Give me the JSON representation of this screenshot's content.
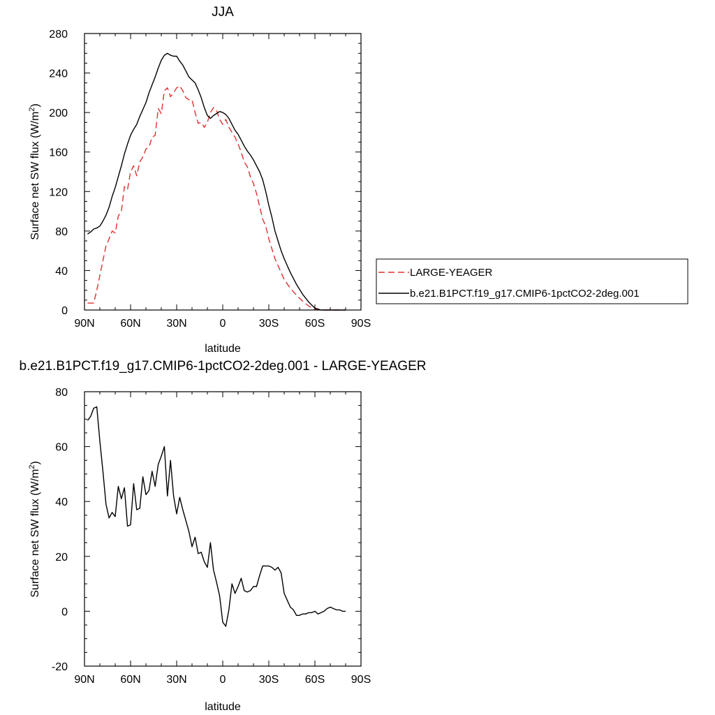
{
  "chart_data": [
    {
      "type": "line",
      "title": "JJA",
      "xlabel": "latitude",
      "ylabel": "Surface net SW flux (W/m²)",
      "xlim": [
        90,
        -90
      ],
      "ylim": [
        0,
        280
      ],
      "xticks": [
        90,
        60,
        30,
        0,
        -30,
        -60,
        -90
      ],
      "xtick_labels": [
        "90N",
        "60N",
        "30N",
        "0",
        "30S",
        "60S",
        "90S"
      ],
      "yticks": [
        0,
        40,
        80,
        120,
        160,
        200,
        240,
        280
      ],
      "ytick_labels": [
        "0",
        "40",
        "80",
        "120",
        "160",
        "200",
        "240",
        "280"
      ],
      "legend_position": "right",
      "series": [
        {
          "name": "LARGE-YEAGER",
          "color": "#e03030",
          "dash": "dashed",
          "x": [
            88,
            84,
            82,
            80,
            78,
            76,
            74,
            72,
            70,
            68,
            66,
            64,
            62,
            60,
            58,
            56,
            54,
            52,
            50,
            48,
            46,
            44,
            42,
            40,
            38,
            36,
            34,
            32,
            30,
            28,
            26,
            24,
            22,
            20,
            18,
            16,
            14,
            12,
            10,
            8,
            6,
            4,
            2,
            0,
            -2,
            -4,
            -6,
            -8,
            -10,
            -12,
            -14,
            -16,
            -18,
            -20,
            -22,
            -24,
            -26,
            -28,
            -30,
            -32,
            -34,
            -36,
            -38,
            -40,
            -44,
            -48,
            -52,
            -56,
            -60,
            -64,
            -66,
            -68,
            -70,
            -72,
            -76,
            -80
          ],
          "values": [
            7,
            7,
            20,
            35,
            50,
            65,
            72,
            80,
            78,
            95,
            100,
            125,
            122,
            140,
            146,
            136,
            150,
            155,
            163,
            165,
            175,
            177,
            204,
            199,
            222,
            225,
            216,
            220,
            225,
            227,
            222,
            215,
            213,
            213,
            200,
            189,
            190,
            185,
            190,
            200,
            205,
            202,
            193,
            188,
            193,
            185,
            180,
            175,
            168,
            160,
            150,
            145,
            135,
            128,
            118,
            105,
            92,
            85,
            72,
            62,
            52,
            45,
            38,
            31,
            22,
            15,
            9,
            4,
            1,
            0,
            0,
            0,
            0,
            0,
            0,
            0
          ]
        },
        {
          "name": "b.e21.B1PCT.f19_g17.CMIP6-1pctCO2-2deg.001",
          "color": "#000000",
          "dash": "solid",
          "x": [
            88,
            86,
            84,
            82,
            80,
            78,
            76,
            74,
            72,
            70,
            68,
            66,
            64,
            62,
            60,
            58,
            56,
            54,
            52,
            50,
            48,
            46,
            44,
            42,
            40,
            38,
            36,
            34,
            32,
            30,
            28,
            26,
            24,
            22,
            20,
            18,
            16,
            14,
            12,
            10,
            8,
            6,
            4,
            2,
            0,
            -2,
            -4,
            -6,
            -8,
            -10,
            -12,
            -14,
            -16,
            -18,
            -20,
            -22,
            -24,
            -26,
            -28,
            -30,
            -32,
            -34,
            -36,
            -38,
            -40,
            -44,
            -48,
            -52,
            -56,
            -60,
            -64,
            -66,
            -68,
            -70,
            -72,
            -76,
            -80
          ],
          "values": [
            77,
            79,
            82,
            83,
            85,
            90,
            96,
            104,
            115,
            124,
            135,
            146,
            158,
            168,
            177,
            183,
            188,
            196,
            203,
            210,
            220,
            228,
            236,
            245,
            253,
            258,
            260,
            258,
            257,
            257,
            252,
            248,
            242,
            236,
            233,
            230,
            223,
            215,
            205,
            197,
            194,
            197,
            199,
            201,
            200,
            198,
            194,
            188,
            182,
            178,
            172,
            166,
            161,
            157,
            152,
            146,
            140,
            132,
            120,
            106,
            94,
            80,
            70,
            60,
            52,
            38,
            26,
            16,
            8,
            2,
            0,
            0,
            0,
            0,
            0,
            0,
            0
          ]
        }
      ]
    },
    {
      "type": "line",
      "title": "b.e21.B1PCT.f19_g17.CMIP6-1pctCO2-2deg.001 - LARGE-YEAGER",
      "xlabel": "latitude",
      "ylabel": "Surface net SW flux (W/m²)",
      "xlim": [
        90,
        -90
      ],
      "ylim": [
        -20,
        80
      ],
      "xticks": [
        90,
        60,
        30,
        0,
        -30,
        -60,
        -90
      ],
      "xtick_labels": [
        "90N",
        "60N",
        "30N",
        "0",
        "30S",
        "60S",
        "90S"
      ],
      "yticks": [
        -20,
        0,
        20,
        40,
        60,
        80
      ],
      "ytick_labels": [
        "-20",
        "0",
        "20",
        "40",
        "60",
        "80"
      ],
      "series": [
        {
          "color": "#000000",
          "dash": "solid",
          "x": [
            88,
            86,
            84,
            82,
            80,
            78,
            76,
            74,
            72,
            70,
            68,
            66,
            64,
            62,
            60,
            58,
            56,
            54,
            52,
            50,
            48,
            46,
            44,
            42,
            40,
            38,
            36,
            34,
            32,
            30,
            28,
            26,
            24,
            22,
            20,
            18,
            16,
            14,
            12,
            10,
            8,
            6,
            4,
            2,
            0,
            -2,
            -4,
            -6,
            -8,
            -10,
            -12,
            -14,
            -16,
            -18,
            -20,
            -22,
            -24,
            -26,
            -28,
            -30,
            -32,
            -34,
            -36,
            -38,
            -40,
            -42,
            -44,
            -46,
            -48,
            -50,
            -52,
            -54,
            -56,
            -58,
            -60,
            -62,
            -64,
            -66,
            -68,
            -70,
            -72,
            -74,
            -76,
            -78,
            -80
          ],
          "values": [
            69.5,
            71,
            74,
            74.5,
            62,
            51,
            39,
            34,
            36,
            34.5,
            45.5,
            41,
            45,
            31,
            31.5,
            46.5,
            37,
            37.5,
            49,
            42.5,
            44,
            51,
            45.5,
            53.5,
            56.5,
            60,
            42,
            55,
            42,
            35.5,
            41.5,
            37,
            33,
            29,
            23.5,
            27,
            21,
            21.5,
            18,
            16,
            25,
            15,
            10.5,
            5.5,
            -4,
            -5.5,
            0.5,
            10,
            6.5,
            9,
            12,
            7.5,
            7,
            7.5,
            9,
            9,
            13,
            16.5,
            16.5,
            16.5,
            16,
            15,
            16,
            14,
            6.5,
            4,
            1.5,
            0.5,
            -1.5,
            -1.5,
            -1,
            -1,
            -0.5,
            -0.5,
            0,
            -1,
            -0.5,
            0,
            1,
            1.5,
            1,
            0.5,
            0.5,
            0,
            0
          ]
        }
      ]
    }
  ]
}
